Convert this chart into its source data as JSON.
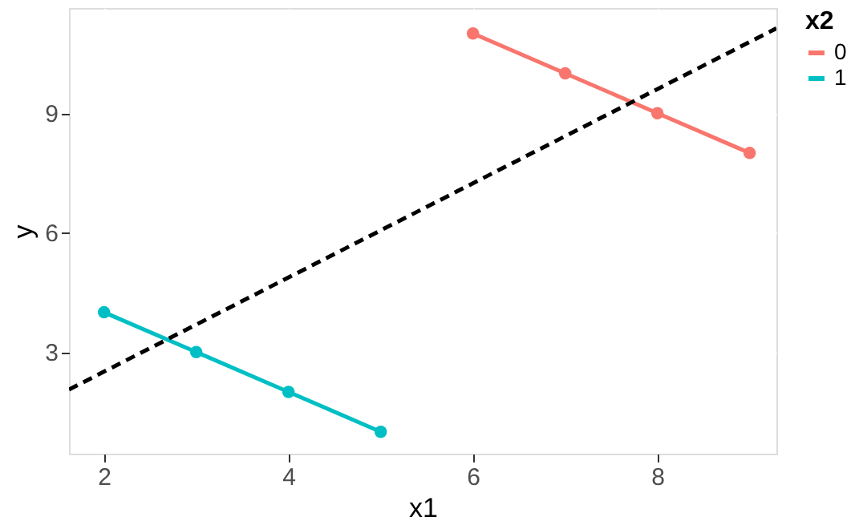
{
  "chart_data": {
    "type": "line",
    "xlabel": "x1",
    "ylabel": "y",
    "legend_title": "x2",
    "xlim": [
      1.62,
      9.29
    ],
    "ylim": [
      0.45,
      11.64
    ],
    "xticks": [
      2,
      4,
      6,
      8
    ],
    "yticks": [
      3,
      6,
      9
    ],
    "grid": true,
    "legend": "right",
    "marker": "circle",
    "line_style": "solid",
    "series": [
      {
        "name": "0",
        "color": "#f8766d",
        "x": [
          6,
          7,
          8,
          9
        ],
        "values": [
          11,
          10,
          9,
          8
        ]
      },
      {
        "name": "1",
        "color": "#00bfc4",
        "x": [
          2,
          3,
          4,
          5
        ],
        "values": [
          4,
          3,
          2,
          1
        ]
      },
      {
        "type": "line",
        "color": "#000000",
        "line_style": "dashed",
        "marker": "none",
        "x": [
          1.62,
          9.29
        ],
        "values": [
          2.06,
          11.13
        ]
      }
    ]
  }
}
